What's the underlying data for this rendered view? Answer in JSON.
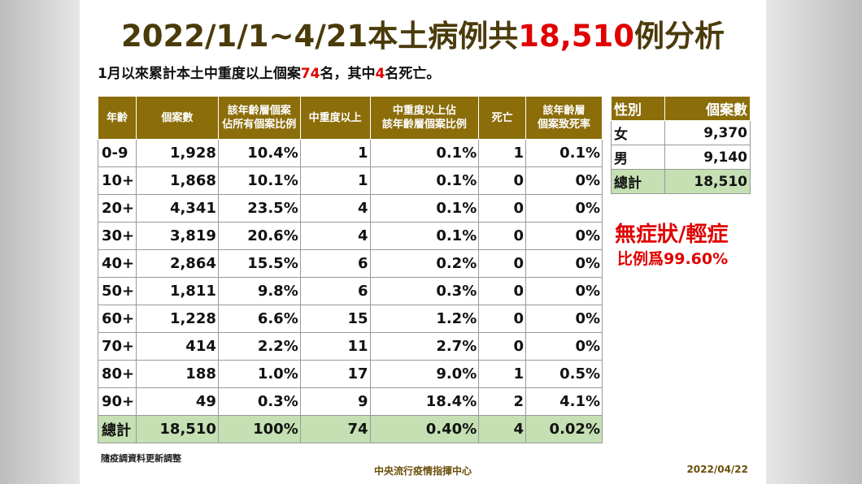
{
  "title": {
    "prefix": "2022/1/1~4/21本土病例共",
    "highlight": "18,510",
    "suffix": "例分析"
  },
  "subtitle": {
    "part1": "1月以來累計本土中重度以上個案",
    "num1": "74",
    "part2": "名，其中",
    "num2": "4",
    "part3": "名死亡。"
  },
  "age_table": {
    "headers": [
      "年齡",
      "個案數",
      "該年齡層個案\n佔所有個案比例",
      "中重度以上",
      "中重度以上佔\n該年齡層個案比例",
      "死亡",
      "該年齡層\n個案致死率"
    ],
    "rows": [
      [
        "0-9",
        "1,928",
        "10.4%",
        "1",
        "0.1%",
        "1",
        "0.1%"
      ],
      [
        "10+",
        "1,868",
        "10.1%",
        "1",
        "0.1%",
        "0",
        "0%"
      ],
      [
        "20+",
        "4,341",
        "23.5%",
        "4",
        "0.1%",
        "0",
        "0%"
      ],
      [
        "30+",
        "3,819",
        "20.6%",
        "4",
        "0.1%",
        "0",
        "0%"
      ],
      [
        "40+",
        "2,864",
        "15.5%",
        "6",
        "0.2%",
        "0",
        "0%"
      ],
      [
        "50+",
        "1,811",
        "9.8%",
        "6",
        "0.3%",
        "0",
        "0%"
      ],
      [
        "60+",
        "1,228",
        "6.6%",
        "15",
        "1.2%",
        "0",
        "0%"
      ],
      [
        "70+",
        "414",
        "2.2%",
        "11",
        "2.7%",
        "0",
        "0%"
      ],
      [
        "80+",
        "188",
        "1.0%",
        "17",
        "9.0%",
        "1",
        "0.5%"
      ],
      [
        "90+",
        "49",
        "0.3%",
        "9",
        "18.4%",
        "2",
        "4.1%"
      ]
    ],
    "total": [
      "總計",
      "18,510",
      "100%",
      "74",
      "0.40%",
      "4",
      "0.02%"
    ]
  },
  "sex_table": {
    "headers": [
      "性別",
      "個案數"
    ],
    "rows": [
      [
        "女",
        "9,370"
      ],
      [
        "男",
        "9,140"
      ]
    ],
    "total": [
      "總計",
      "18,510"
    ]
  },
  "mild": {
    "line1": "無症狀/輕症",
    "line2": "比例爲99.60%"
  },
  "footer": {
    "note": "隨疫調資料更新調整",
    "center": "中央流行疫情指揮中心",
    "date": "2022/04/22"
  },
  "colors": {
    "header_bg": "#8b6d0a",
    "title": "#4a3b0a",
    "highlight": "#e00000",
    "total_bg": "#c5e0b3"
  }
}
